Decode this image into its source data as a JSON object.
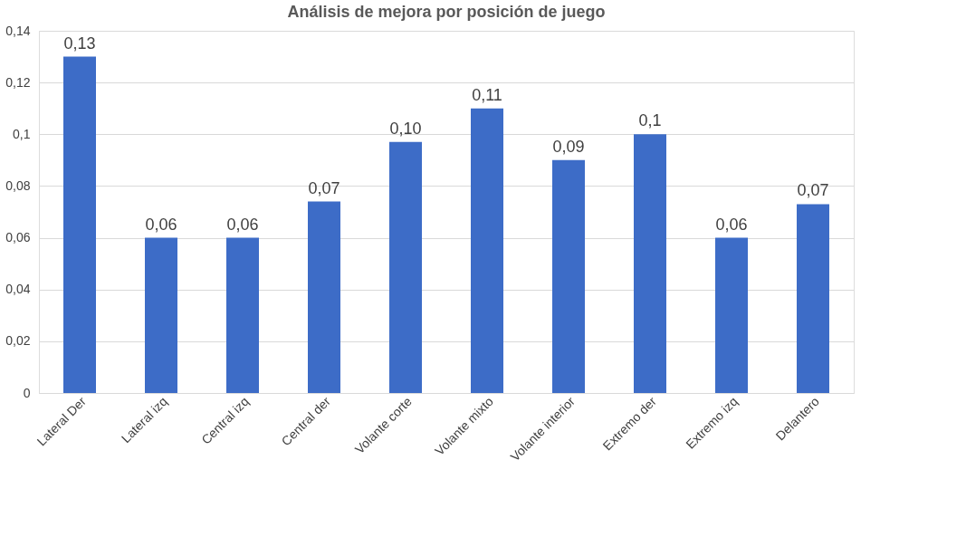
{
  "chart_data": {
    "type": "bar",
    "title": "Análisis de mejora por posición de juego",
    "categories": [
      "Lateral Der",
      "Lateral izq",
      "Central izq",
      "Central der",
      "Volante corte",
      "Volante mixto",
      "Volante interior",
      "Extremo der",
      "Extremo izq",
      "Delantero"
    ],
    "values": [
      0.13,
      0.06,
      0.06,
      0.074,
      0.097,
      0.11,
      0.09,
      0.1,
      0.06,
      0.073
    ],
    "value_labels": [
      "0,13",
      "0,06",
      "0,06",
      "0,07",
      "0,10",
      "0,11",
      "0,09",
      "0,1",
      "0,06",
      "0,07"
    ],
    "color": "#3d6cc7",
    "ylim": [
      0,
      0.14
    ],
    "yticks": [
      {
        "value": 0,
        "label": "0"
      },
      {
        "value": 0.02,
        "label": "0,02"
      },
      {
        "value": 0.04,
        "label": "0,04"
      },
      {
        "value": 0.06,
        "label": "0,06"
      },
      {
        "value": 0.08,
        "label": "0,08"
      },
      {
        "value": 0.1,
        "label": "0,1"
      },
      {
        "value": 0.12,
        "label": "0,12"
      },
      {
        "value": 0.14,
        "label": "0,14"
      }
    ],
    "grid": "y"
  }
}
